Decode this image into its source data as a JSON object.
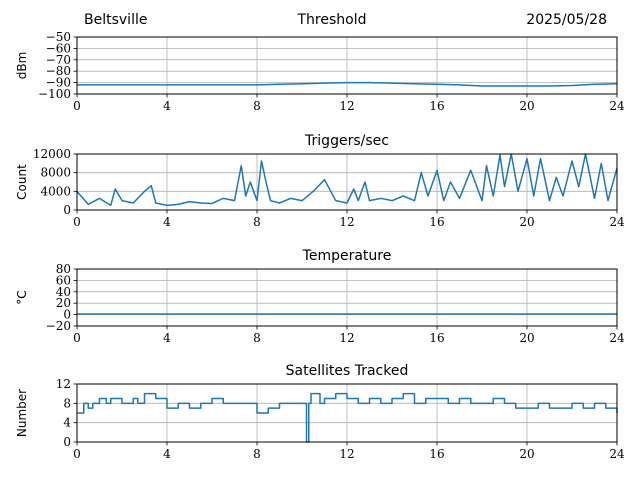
{
  "header": {
    "location": "Beltsville",
    "title": "Threshold",
    "date": "2025/05/28"
  },
  "colors": {
    "series": "#1f77b4",
    "grid": "#b0b0b0",
    "axis": "#000000"
  },
  "chart_data": [
    {
      "type": "line",
      "title": "",
      "xlabel": "",
      "ylabel": "dBm",
      "xlim": [
        0,
        24
      ],
      "ylim": [
        -100,
        -50
      ],
      "xticks": [
        0,
        4,
        8,
        12,
        16,
        20,
        24
      ],
      "yticks": [
        -100,
        -90,
        -80,
        -70,
        -60,
        -50
      ],
      "ytick_labels": [
        "−100",
        "−90",
        "−80",
        "−70",
        "−60",
        "−50"
      ],
      "grid": true,
      "series": [
        {
          "x": [
            0,
            1,
            2,
            3,
            4,
            5,
            6,
            7,
            8,
            9,
            10,
            11,
            12,
            13,
            14,
            15,
            16,
            17,
            18,
            19,
            20,
            21,
            22,
            23,
            24
          ],
          "y": [
            -92,
            -92,
            -92,
            -92,
            -92,
            -92,
            -92,
            -92,
            -92,
            -91.5,
            -91,
            -90.5,
            -90,
            -90,
            -90.5,
            -91,
            -91.5,
            -92,
            -93,
            -93,
            -93,
            -93,
            -92.5,
            -91.5,
            -91
          ]
        }
      ]
    },
    {
      "type": "line",
      "title": "Triggers/sec",
      "xlabel": "",
      "ylabel": "Count",
      "xlim": [
        0,
        24
      ],
      "ylim": [
        0,
        12000
      ],
      "xticks": [
        0,
        4,
        8,
        12,
        16,
        20,
        24
      ],
      "yticks": [
        0,
        4000,
        8000,
        12000
      ],
      "ytick_labels": [
        "0",
        "4000",
        "8000",
        "12000"
      ],
      "grid": true,
      "series": [
        {
          "x": [
            0,
            0.5,
            1,
            1.5,
            1.7,
            2,
            2.5,
            3,
            3.3,
            3.5,
            4,
            4.5,
            5,
            5.5,
            6,
            6.5,
            7,
            7.3,
            7.5,
            7.7,
            8,
            8.2,
            8.4,
            8.6,
            9,
            9.5,
            10,
            10.5,
            11,
            11.5,
            12,
            12.3,
            12.5,
            12.8,
            13,
            13.5,
            14,
            14.5,
            15,
            15.3,
            15.6,
            16,
            16.3,
            16.6,
            17,
            17.5,
            18,
            18.2,
            18.5,
            18.8,
            19,
            19.3,
            19.6,
            20,
            20.3,
            20.6,
            21,
            21.3,
            21.6,
            22,
            22.3,
            22.6,
            23,
            23.3,
            23.6,
            24
          ],
          "y": [
            4000,
            1200,
            2500,
            1000,
            4500,
            2000,
            1500,
            4000,
            5200,
            1500,
            1000,
            1200,
            1800,
            1500,
            1400,
            2500,
            2000,
            9500,
            3000,
            6000,
            2000,
            10500,
            6000,
            2000,
            1500,
            2500,
            2000,
            4000,
            6500,
            2000,
            1500,
            4500,
            2000,
            6000,
            2000,
            2500,
            2000,
            3000,
            2000,
            8000,
            3000,
            8500,
            2000,
            6000,
            2500,
            8500,
            2000,
            9500,
            3000,
            11800,
            5000,
            12000,
            4000,
            11000,
            3000,
            11000,
            2000,
            7000,
            3000,
            10500,
            5000,
            12000,
            2500,
            10000,
            2000,
            9000
          ]
        }
      ]
    },
    {
      "type": "line",
      "title": "Temperature",
      "xlabel": "",
      "ylabel": "°C",
      "xlim": [
        0,
        24
      ],
      "ylim": [
        -20,
        80
      ],
      "xticks": [
        0,
        4,
        8,
        12,
        16,
        20,
        24
      ],
      "yticks": [
        -20,
        0,
        20,
        40,
        60,
        80
      ],
      "ytick_labels": [
        "−20",
        "0",
        "20",
        "40",
        "60",
        "80"
      ],
      "grid": true,
      "series": [
        {
          "x": [
            0,
            24
          ],
          "y": [
            1,
            1
          ]
        }
      ]
    },
    {
      "type": "line",
      "title": "Satellites Tracked",
      "xlabel": "",
      "ylabel": "Number",
      "xlim": [
        0,
        24
      ],
      "ylim": [
        0,
        12
      ],
      "xticks": [
        0,
        4,
        8,
        12,
        16,
        20,
        24
      ],
      "yticks": [
        0,
        4,
        8,
        12
      ],
      "ytick_labels": [
        "0",
        "4",
        "8",
        "12"
      ],
      "grid": true,
      "series": [
        {
          "step": true,
          "x": [
            0,
            0.3,
            0.5,
            0.7,
            1,
            1.3,
            1.5,
            2,
            2.5,
            2.7,
            3,
            3.5,
            4,
            4.5,
            5,
            5.5,
            6,
            6.5,
            7,
            7.5,
            8,
            8.5,
            9,
            9.5,
            10,
            10.2,
            10.3,
            10.4,
            10.8,
            11,
            11.5,
            12,
            12.5,
            13,
            13.5,
            14,
            14.5,
            15,
            15.5,
            16,
            16.5,
            17,
            17.5,
            18,
            18.5,
            19,
            19.5,
            20,
            20.5,
            21,
            21.5,
            22,
            22.5,
            23,
            23.5,
            24
          ],
          "y": [
            6,
            8,
            7,
            8,
            9,
            8,
            9,
            8,
            9,
            8,
            10,
            9,
            7,
            8,
            7,
            8,
            9,
            8,
            8,
            8,
            6,
            7,
            8,
            8,
            8,
            0,
            8,
            10,
            8,
            9,
            10,
            9,
            8,
            9,
            8,
            9,
            10,
            8,
            9,
            9,
            8,
            9,
            8,
            8,
            9,
            8,
            7,
            7,
            8,
            7,
            7,
            8,
            7,
            8,
            7,
            6
          ]
        }
      ]
    }
  ]
}
